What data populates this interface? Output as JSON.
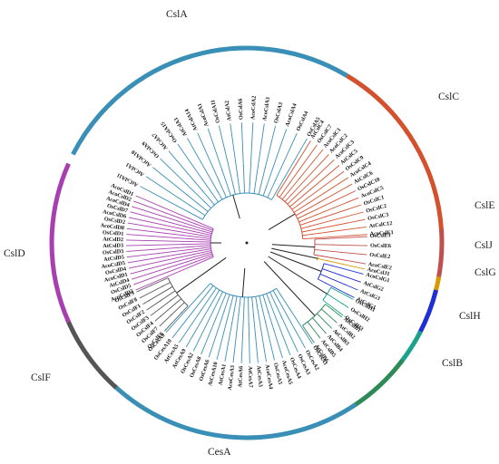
{
  "tree": {
    "groups": [
      {
        "name": "CslA",
        "color": "#3a8fb7",
        "labels": [
          "AtCslA11",
          "AtCslA1",
          "AtCslA10",
          "OsCslA9",
          "AtCslA7",
          "OsCslA15",
          "AtCslA3",
          "AtCslA14",
          "AcoCslA1",
          "OsCslA11",
          "AtCslA2",
          "OsCslA6",
          "AcoCslA2",
          "AcoCslA3",
          "OsCslA3",
          "AcoCslA4",
          "OsCslA4",
          "OsCslA5"
        ]
      },
      {
        "name": "CslC",
        "color": "#d4512e",
        "labels": [
          "AtCslC4",
          "OsCslC7",
          "AcoCslC1",
          "AcoCslC2",
          "AcoCslC3",
          "AtCslC5",
          "OsCslC9",
          "AcoCslC4",
          "AtCslC6",
          "OsCslC10",
          "AcoCslC5",
          "OsCslC1",
          "OsCslC2",
          "OsCslC3",
          "AtCslC12",
          "AcoCslE1"
        ]
      },
      {
        "name": "CslE",
        "color": "#c0504d",
        "labels": [
          "OsCslE1",
          "OsCslE6",
          "OsCslE2",
          "AcoCslE2"
        ]
      },
      {
        "name": "CslJ",
        "color": "#d89a00",
        "labels": [
          "AcoCslJ1"
        ]
      },
      {
        "name": "CslG",
        "color": "#1f2fd4",
        "labels": [
          "AcoCslG1",
          "AtCslG2",
          "AtCslG3",
          "AtCslG1"
        ]
      },
      {
        "name": "CslH",
        "color": "#1aa38a",
        "labels": [
          "OsCslH1",
          "OsCslH2",
          "OsCslH3"
        ]
      },
      {
        "name": "CslB",
        "color": "#2e8b57",
        "labels": [
          "AtCslB1",
          "AtCslB2",
          "AtCslB3",
          "AtCslB4",
          "AtCslB5",
          "AtCslB6"
        ]
      },
      {
        "name": "CesA",
        "color": "#3a8fb7",
        "labels": [
          "OsCesA1",
          "OsCesA2",
          "OsCesA3",
          "OsCesA4",
          "AcoCesA5",
          "OsCesA5",
          "AcoCesA4",
          "AtCesA3",
          "AtCesA7",
          "AtCesA6",
          "AcoCesA3",
          "AtCesA1",
          "AtCesA10",
          "OsCesA6",
          "OsCesA8",
          "OsCesA2",
          "AtCesA9",
          "AtCesA5",
          "OsCesA10",
          "OsCesA9"
        ]
      },
      {
        "name": "CslF",
        "color": "#555555",
        "labels": [
          "OsCslF6",
          "OsCslF7",
          "OsCslF4",
          "OsCslF3",
          "OsCslF2",
          "OsCslF1",
          "OsCslF8",
          "OsCslF9"
        ]
      },
      {
        "name": "CslD",
        "color": "#a83fb0",
        "labels": [
          "AcoCslD3",
          "OsCslD5",
          "AtCslD4",
          "AcoCslD1",
          "OsCslD4",
          "AcoCslD5",
          "AtCslD5",
          "OsCslD3",
          "AtCslD3",
          "AtCslD2",
          "OsCslD1",
          "AcoCslD8",
          "OsCslD2",
          "AcoCslD6",
          "OsCslD7",
          "AcoCslD4",
          "AcoCslD2",
          "AcoCslD1"
        ]
      }
    ]
  }
}
